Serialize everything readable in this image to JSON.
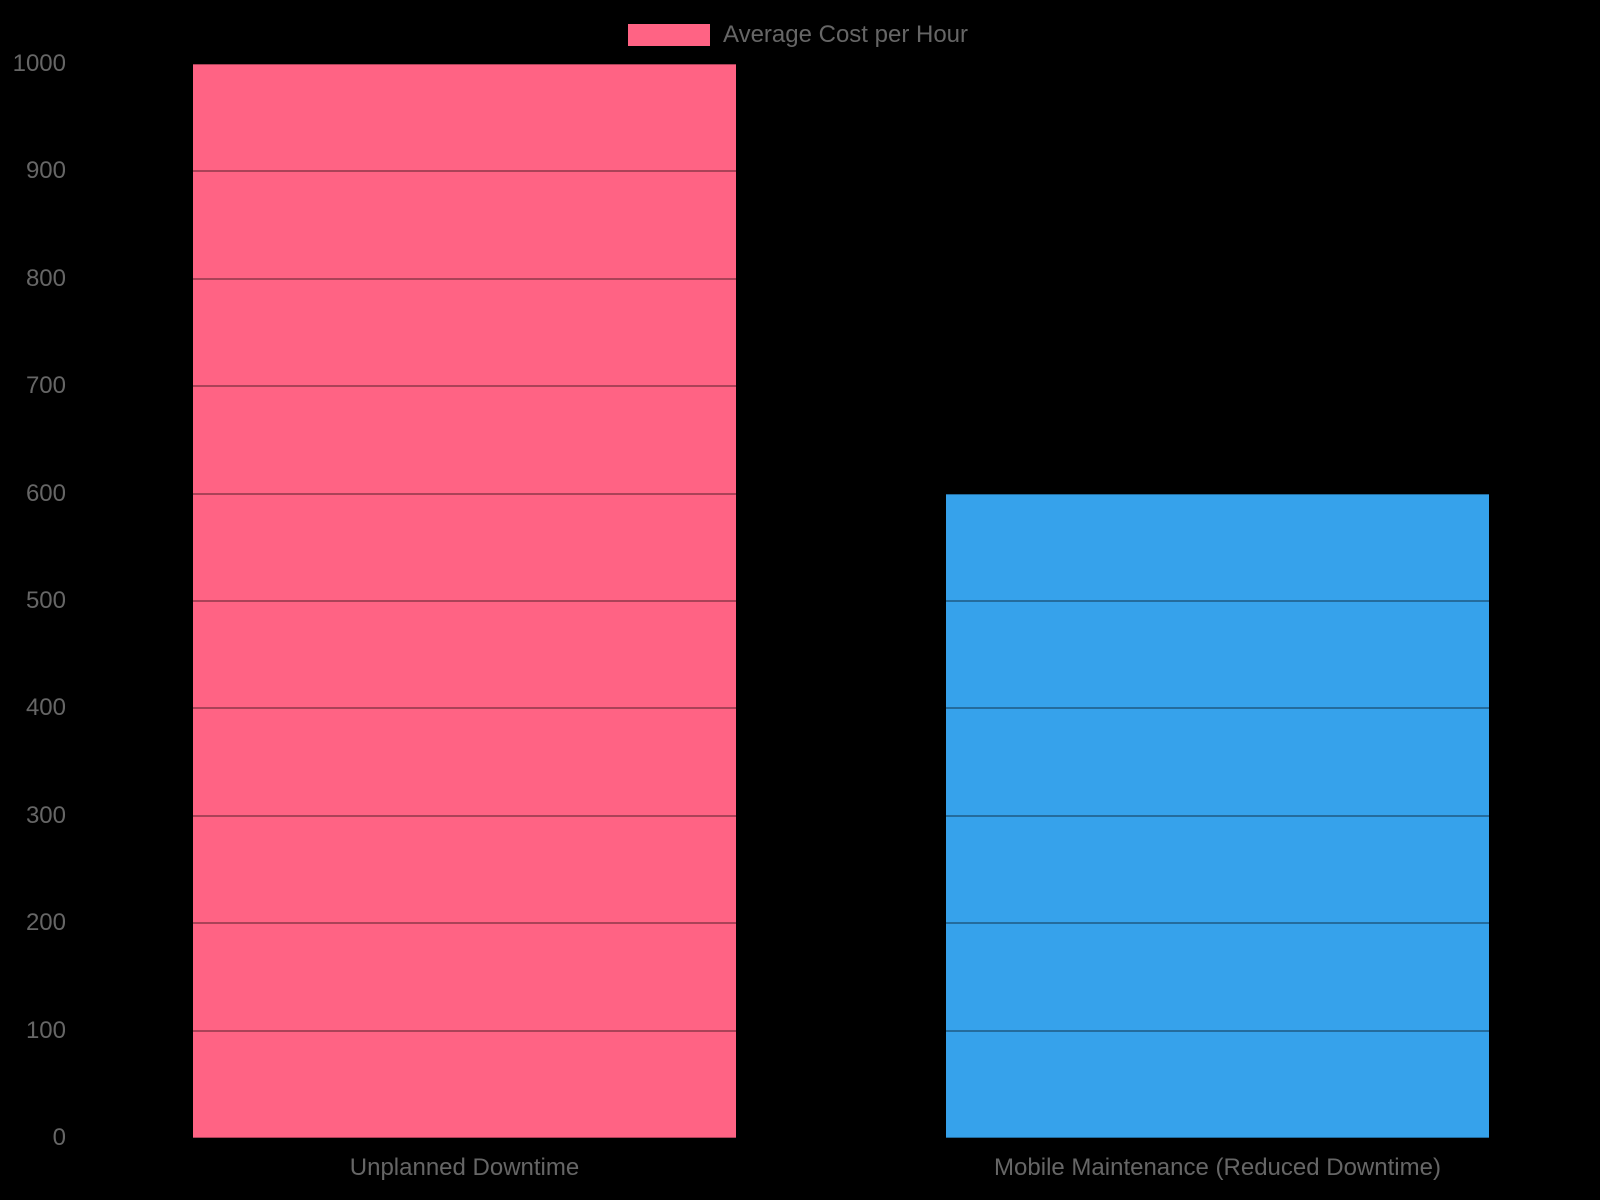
{
  "chart_data": {
    "type": "bar",
    "title": "",
    "categories": [
      "Unplanned Downtime",
      "Mobile Maintenance (Reduced Downtime)"
    ],
    "series": [
      {
        "name": "Average Cost per Hour",
        "values": [
          1000,
          600
        ]
      }
    ],
    "bar_colors": [
      "#FF6384",
      "#36A2EB"
    ],
    "ylim": [
      0,
      1000
    ],
    "yticks": [
      0,
      100,
      200,
      300,
      400,
      500,
      600,
      700,
      800,
      900,
      1000
    ],
    "grid": true,
    "gridline_overlay_color": "rgba(0,0,0,0.33)",
    "legend_position": "top",
    "background_color": "#000000",
    "text_color": "#666666",
    "legend_swatch_color": "#FF6384"
  }
}
